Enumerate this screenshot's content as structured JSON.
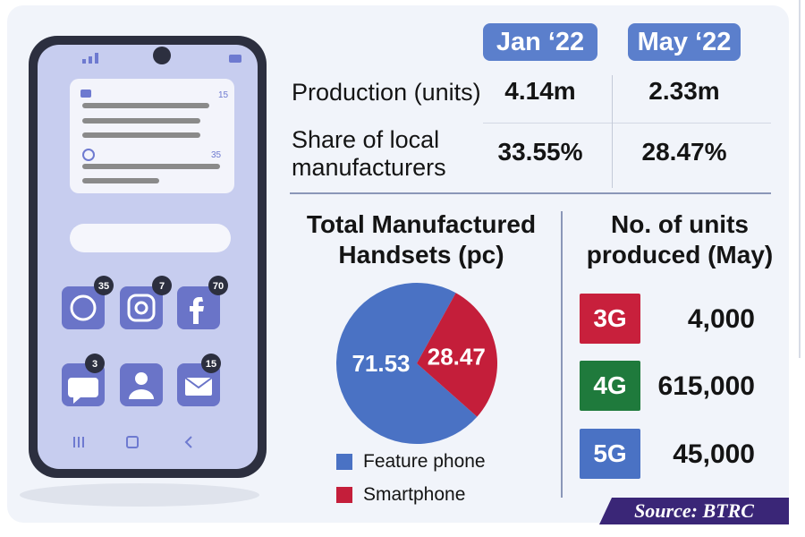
{
  "colors": {
    "accent": "#5b7fcc",
    "feature": "#4a72c4",
    "smartphone": "#c41e3a",
    "g3": "#c8203c",
    "g4": "#1f7a3c",
    "g5": "#4a72c4",
    "source_bg": "#3a2677"
  },
  "table": {
    "periods": [
      "Jan ‘22",
      "May ‘22"
    ],
    "rows": [
      {
        "label": "Production (units)",
        "values": [
          "4.14m",
          "2.33m"
        ]
      },
      {
        "label": "Share of local manufacturers",
        "values": [
          "33.55%",
          "28.47%"
        ]
      }
    ]
  },
  "phone": {
    "notifications": [
      "15",
      "35"
    ],
    "app_badges": {
      "whatsapp": "35",
      "instagram": "7",
      "facebook": "70",
      "messages": "3",
      "mail": "15"
    }
  },
  "chart_data": [
    {
      "type": "pie",
      "title": "Total Manufactured Handsets (pc)",
      "labels": [
        "Feature phone",
        "Smartphone"
      ],
      "values": [
        71.53,
        28.47
      ],
      "value_labels": [
        "71.53",
        "28.47"
      ],
      "colors": [
        "#4a72c4",
        "#c41e3a"
      ]
    },
    {
      "type": "table",
      "title": "No. of units produced (May)",
      "categories": [
        "3G",
        "4G",
        "5G"
      ],
      "values": [
        4000,
        615000,
        45000
      ],
      "value_labels": [
        "4,000",
        "615,000",
        "45,000"
      ],
      "colors": [
        "#c8203c",
        "#1f7a3c",
        "#4a72c4"
      ]
    }
  ],
  "source": "Source: BTRC"
}
